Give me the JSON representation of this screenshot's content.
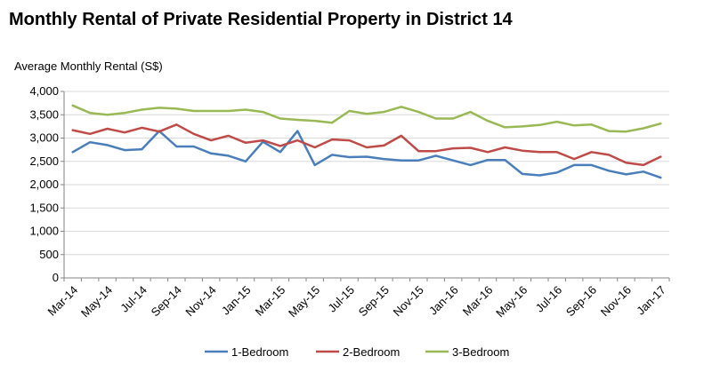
{
  "chart_data": {
    "type": "line",
    "title": "Monthly Rental of Private Residential Property  in District 14",
    "ylabel": "Average Monthly Rental (S$)",
    "xlabel": "",
    "ylim": [
      0,
      4000
    ],
    "y_ticks": [
      0,
      500,
      1000,
      1500,
      2000,
      2500,
      3000,
      3500,
      4000
    ],
    "y_tick_labels": [
      "0",
      "500",
      "1,000",
      "1,500",
      "2,000",
      "2,500",
      "3,000",
      "3,500",
      "4,000"
    ],
    "grid": true,
    "legend_position": "bottom",
    "x": [
      "Mar-14",
      "Apr-14",
      "May-14",
      "Jun-14",
      "Jul-14",
      "Aug-14",
      "Sep-14",
      "Oct-14",
      "Nov-14",
      "Dec-14",
      "Jan-15",
      "Feb-15",
      "Mar-15",
      "Apr-15",
      "May-15",
      "Jun-15",
      "Jul-15",
      "Aug-15",
      "Sep-15",
      "Oct-15",
      "Nov-15",
      "Dec-15",
      "Jan-16",
      "Feb-16",
      "Mar-16",
      "Apr-16",
      "May-16",
      "Jun-16",
      "Jul-16",
      "Aug-16",
      "Sep-16",
      "Oct-16",
      "Nov-16",
      "Dec-16",
      "Jan-17"
    ],
    "x_tick_labels": [
      "Mar-14",
      "May-14",
      "Jul-14",
      "Sep-14",
      "Nov-14",
      "Jan-15",
      "Mar-15",
      "May-15",
      "Jul-15",
      "Sep-15",
      "Nov-15",
      "Jan-16",
      "Mar-16",
      "May-16",
      "Jul-16",
      "Sep-16",
      "Nov-16",
      "Jan-17"
    ],
    "series": [
      {
        "name": "1-Bedroom",
        "color": "#4a7ebb",
        "values": [
          2700,
          2910,
          2850,
          2740,
          2760,
          3150,
          2820,
          2820,
          2670,
          2620,
          2500,
          2920,
          2700,
          3150,
          2420,
          2640,
          2590,
          2600,
          2550,
          2520,
          2520,
          2620,
          2520,
          2420,
          2530,
          2530,
          2230,
          2200,
          2260,
          2420,
          2420,
          2300,
          2220,
          2280,
          2150
        ]
      },
      {
        "name": "2-Bedroom",
        "color": "#be4b48",
        "values": [
          3170,
          3090,
          3200,
          3120,
          3220,
          3140,
          3290,
          3090,
          2950,
          3050,
          2900,
          2950,
          2830,
          2950,
          2800,
          2970,
          2950,
          2800,
          2840,
          3050,
          2720,
          2720,
          2780,
          2790,
          2700,
          2800,
          2730,
          2700,
          2700,
          2550,
          2700,
          2640,
          2470,
          2420,
          2600
        ]
      },
      {
        "name": "3-Bedroom",
        "color": "#98b954",
        "values": [
          3700,
          3540,
          3500,
          3540,
          3610,
          3650,
          3630,
          3580,
          3580,
          3580,
          3610,
          3560,
          3420,
          3390,
          3370,
          3330,
          3580,
          3520,
          3560,
          3670,
          3560,
          3420,
          3420,
          3560,
          3370,
          3230,
          3250,
          3280,
          3350,
          3270,
          3290,
          3150,
          3140,
          3210,
          3310
        ]
      }
    ]
  }
}
